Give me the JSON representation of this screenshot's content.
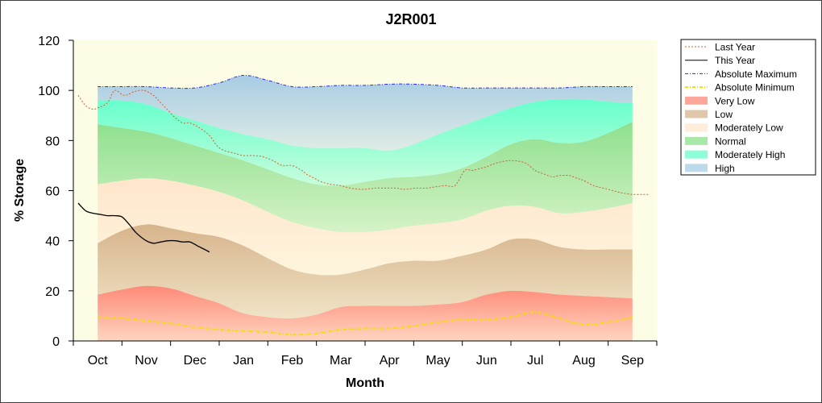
{
  "chart_data": {
    "type": "area",
    "title": "J2R001",
    "xlabel": "Month",
    "ylabel": "% Storage",
    "ylim": [
      0,
      120
    ],
    "yticks": [
      0,
      20,
      40,
      60,
      80,
      100,
      120
    ],
    "categories": [
      "Oct",
      "Nov",
      "Dec",
      "Jan",
      "Feb",
      "Mar",
      "Apr",
      "May",
      "Jun",
      "Jul",
      "Aug",
      "Sep"
    ],
    "grid": false,
    "legend_position": "right",
    "band_x": [
      0,
      0.5,
      1,
      1.5,
      2,
      2.5,
      3,
      3.5,
      4,
      4.5,
      5,
      5.5,
      6,
      6.5,
      7,
      7.5,
      8,
      8.5,
      9,
      9.5,
      10,
      10.5,
      11
    ],
    "bands": [
      {
        "name": "Very Low",
        "color": "#ff8a78",
        "lower": [
          0,
          0,
          0,
          0,
          0,
          0,
          0,
          0,
          0,
          0,
          0,
          0,
          0,
          0,
          0,
          0,
          0,
          0,
          0,
          0,
          0,
          0,
          0
        ],
        "upper": [
          18.5,
          20.5,
          22,
          21,
          18,
          15,
          11,
          9.5,
          9,
          10.5,
          13.5,
          14,
          14,
          14,
          14.5,
          15.5,
          18.5,
          20,
          19.5,
          18.5,
          18,
          17.5,
          17
        ]
      },
      {
        "name": "Low",
        "color": "#d7b48c",
        "lower": [
          18.5,
          20.5,
          22,
          21,
          18,
          15,
          11,
          9.5,
          9,
          10.5,
          13.5,
          14,
          14,
          14,
          14.5,
          15.5,
          18.5,
          20,
          19.5,
          18.5,
          18,
          17.5,
          17
        ],
        "upper": [
          39,
          44,
          46.5,
          45,
          43,
          41.5,
          38,
          33,
          28.5,
          26.5,
          26.5,
          28.5,
          31,
          32,
          32,
          34,
          36.5,
          40.5,
          40.5,
          37.5,
          36.5,
          36.5,
          36.5
        ]
      },
      {
        "name": "Moderately Low",
        "color": "#ffe6cc",
        "lower": [
          39,
          44,
          46.5,
          45,
          43,
          41.5,
          38,
          33,
          28.5,
          26.5,
          26.5,
          28.5,
          31,
          32,
          32,
          34,
          36.5,
          40.5,
          40.5,
          37.5,
          36.5,
          36.5,
          36.5
        ],
        "upper": [
          62.5,
          64,
          65,
          64,
          62,
          59.5,
          56,
          51.5,
          47.5,
          45,
          43.5,
          43.5,
          44.5,
          46,
          47,
          48.5,
          52,
          54,
          53.5,
          51,
          51.5,
          53,
          55
        ]
      },
      {
        "name": "Normal",
        "color": "#8ee08e",
        "lower": [
          62.5,
          64,
          65,
          64,
          62,
          59.5,
          56,
          51.5,
          47.5,
          45,
          43.5,
          43.5,
          44.5,
          46,
          47,
          48.5,
          52,
          54,
          53.5,
          51,
          51.5,
          53,
          55
        ],
        "upper": [
          86.5,
          85,
          83.5,
          81,
          78,
          75,
          72,
          68.5,
          65,
          62.5,
          62,
          63.5,
          65,
          65.5,
          66.5,
          69,
          73.5,
          78.5,
          80.5,
          79,
          79.5,
          83,
          87.5
        ]
      },
      {
        "name": "Moderately High",
        "color": "#66ffcc",
        "lower": [
          86.5,
          85,
          83.5,
          81,
          78,
          75,
          72,
          68.5,
          65,
          62.5,
          62,
          63.5,
          65,
          65.5,
          66.5,
          69,
          73.5,
          78.5,
          80.5,
          79,
          79.5,
          83,
          87.5
        ],
        "upper": [
          96,
          96,
          94.5,
          91,
          88,
          85,
          82.5,
          80.5,
          78,
          77,
          77,
          77,
          76,
          78.5,
          82.5,
          86,
          89.5,
          93,
          95.5,
          96.5,
          96.5,
          95.5,
          95
        ]
      },
      {
        "name": "High",
        "color": "#a8cce4",
        "lower": [
          96,
          96,
          94.5,
          91,
          88,
          85,
          82.5,
          80.5,
          78,
          77,
          77,
          77,
          76,
          78.5,
          82.5,
          86,
          89.5,
          93,
          95.5,
          96.5,
          96.5,
          95.5,
          95
        ],
        "upper": [
          101.5,
          101.5,
          101.5,
          101,
          101,
          103,
          106,
          104,
          101.5,
          101.5,
          102,
          102,
          102.5,
          102.5,
          102,
          101,
          101,
          101,
          101,
          101,
          101.5,
          101.5,
          101.5
        ]
      }
    ],
    "series": [
      {
        "name": "Last Year",
        "color": "#c86432",
        "style": "dotted",
        "x": [
          -0.4,
          -0.25,
          -0.1,
          0,
          0.2,
          0.35,
          0.55,
          0.75,
          0.95,
          1.15,
          1.3,
          1.45,
          1.6,
          1.75,
          1.9,
          2.1,
          2.3,
          2.45,
          2.6,
          2.8,
          3.0,
          3.2,
          3.4,
          3.6,
          3.8,
          4.0,
          4.2,
          4.3,
          4.45,
          4.6,
          4.8,
          5.0,
          5.2,
          5.45,
          5.7,
          5.95,
          6.15,
          6.3,
          6.55,
          6.75,
          6.95,
          7.15,
          7.35,
          7.55,
          7.7,
          7.8,
          7.9,
          8.0,
          8.2,
          8.5,
          8.8,
          9.0,
          9.2,
          9.35,
          9.5,
          9.7,
          9.85,
          10.0,
          10.2,
          10.4,
          10.6,
          10.8,
          11.0,
          11.2,
          11.35
        ],
        "y": [
          98,
          94,
          92.5,
          93,
          95,
          100,
          98,
          99.5,
          100,
          98,
          95,
          92,
          89,
          87,
          87,
          85,
          82,
          78,
          76,
          75,
          74,
          74,
          73.5,
          72,
          70,
          70,
          68,
          66.5,
          65,
          63.5,
          62.5,
          62,
          61,
          60.5,
          61,
          61,
          61,
          60.5,
          61,
          61,
          61.5,
          62,
          62,
          68,
          68,
          68.5,
          69,
          69.5,
          71,
          72,
          71,
          68,
          66.5,
          65.5,
          66,
          66,
          65,
          64,
          62,
          61,
          60,
          59,
          58.5,
          58.5,
          58.5
        ]
      },
      {
        "name": "This Year",
        "color": "#000000",
        "style": "solid",
        "x": [
          -0.4,
          -0.25,
          -0.1,
          0.05,
          0.2,
          0.35,
          0.5,
          0.65,
          0.8,
          1.0,
          1.15,
          1.3,
          1.45,
          1.6,
          1.75,
          1.9,
          2.05,
          2.2,
          2.3
        ],
        "y": [
          55,
          52,
          51,
          50.5,
          50,
          50,
          49.5,
          46.5,
          43,
          40,
          39,
          39.5,
          40,
          40,
          39.5,
          39.5,
          38,
          36.5,
          35.5
        ]
      },
      {
        "name": "Absolute Maximum",
        "color": "#2828e6",
        "style": "dashdot",
        "x": [
          0,
          0.5,
          1,
          1.5,
          2,
          2.5,
          3,
          3.5,
          4,
          4.5,
          5,
          5.5,
          6,
          6.5,
          7,
          7.5,
          8,
          8.5,
          9,
          9.5,
          10,
          10.5,
          11
        ],
        "y": [
          101.5,
          101.5,
          101.5,
          101,
          101,
          103,
          106,
          104,
          101.5,
          101.5,
          102,
          102,
          102.5,
          102.5,
          102,
          101,
          101,
          101,
          101,
          101,
          101.5,
          101.5,
          101.5
        ]
      },
      {
        "name": "Absolute Minimum",
        "color": "#f0e000",
        "style": "dashdot",
        "x": [
          0,
          0.5,
          1,
          1.5,
          2,
          2.5,
          3,
          3.5,
          4,
          4.5,
          5,
          5.5,
          6,
          6.5,
          7,
          7.5,
          8,
          8.5,
          9,
          9.5,
          10,
          10.5,
          11
        ],
        "y": [
          9.5,
          9,
          8,
          7,
          5.5,
          4.5,
          4,
          3.5,
          2.5,
          3,
          4.5,
          5,
          5,
          6,
          7.5,
          8.5,
          8.5,
          9.5,
          11.5,
          9,
          6.5,
          7.5,
          9.5
        ]
      }
    ],
    "legend": [
      {
        "label": "Last Year",
        "kind": "line",
        "color": "#c86432",
        "dash": "2,2"
      },
      {
        "label": "This Year",
        "kind": "line",
        "color": "#000000",
        "dash": ""
      },
      {
        "label": "Absolute Maximum",
        "kind": "line",
        "color": "#2828e6",
        "dash": "4,2,1,2"
      },
      {
        "label": "Absolute Minimum",
        "kind": "line",
        "color": "#f0e000",
        "dash": "4,2,1,2"
      },
      {
        "label": "Very Low",
        "kind": "box",
        "color": "#ff8a78"
      },
      {
        "label": "Low",
        "kind": "box",
        "color": "#d7b48c"
      },
      {
        "label": "Moderately Low",
        "kind": "box",
        "color": "#ffe6cc"
      },
      {
        "label": "Normal",
        "kind": "box",
        "color": "#8ee08e"
      },
      {
        "label": "Moderately High",
        "kind": "box",
        "color": "#66ffcc"
      },
      {
        "label": "High",
        "kind": "box",
        "color": "#a8cce4"
      }
    ]
  }
}
